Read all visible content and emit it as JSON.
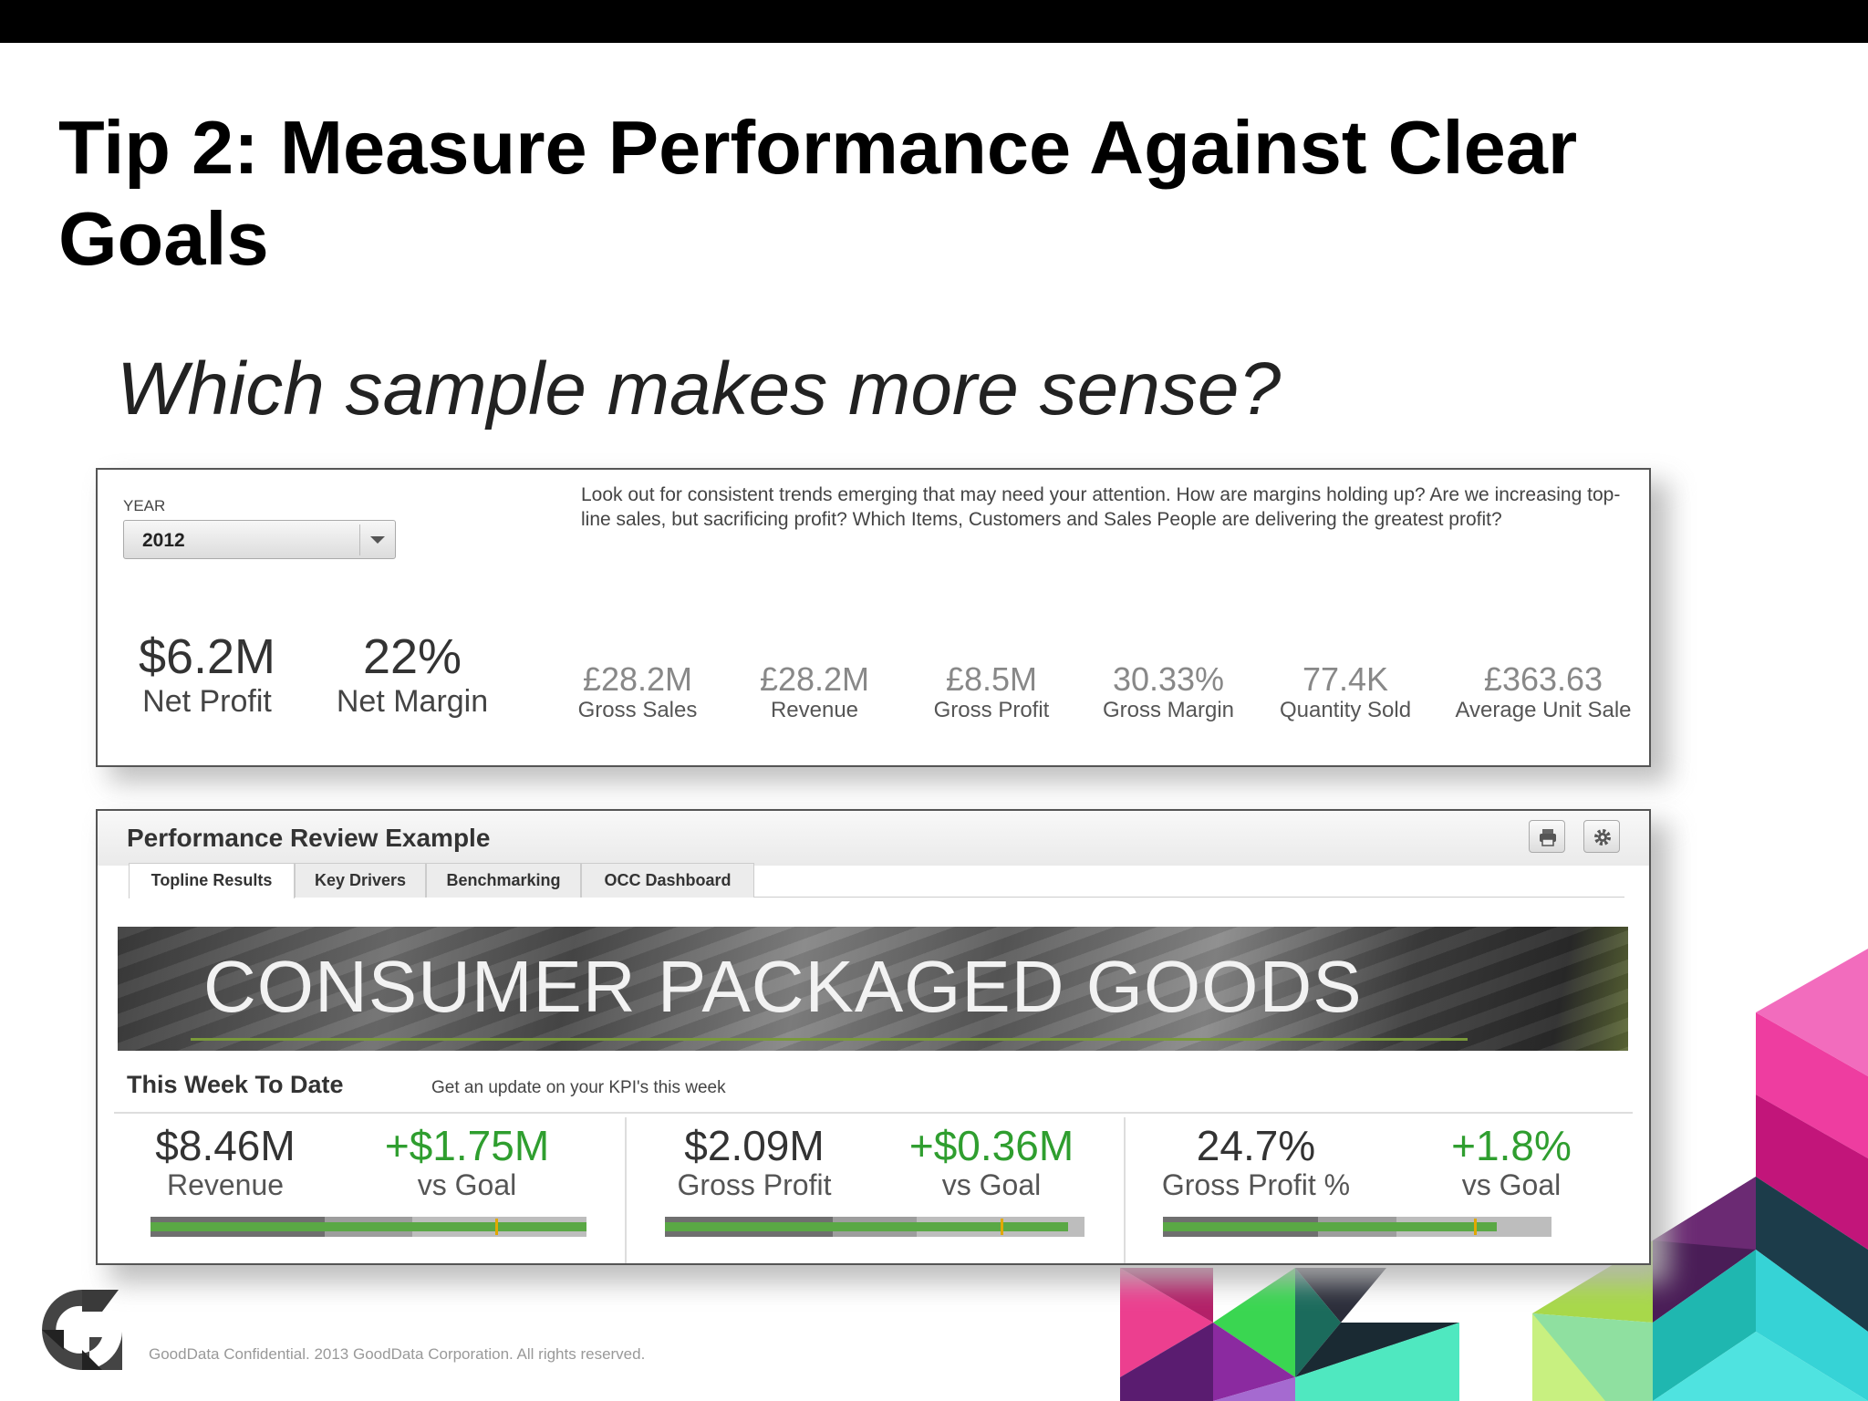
{
  "slide": {
    "title": "Tip 2: Measure Performance Against Clear Goals",
    "subtitle": "Which sample makes more sense?",
    "footer": "GoodData Confidential. 2013 GoodData Corporation. All rights reserved.",
    "logo_icon": "gooddata-g-logo-icon"
  },
  "sample1": {
    "year_label": "YEAR",
    "year_value": "2012",
    "description": "Look out for consistent trends emerging that may need your attention. How are margins holding up? Are we increasing top-line sales, but sacrificing profit? Which Items, Customers and Sales People are delivering the greatest profit?",
    "big_kpis": [
      {
        "value": "$6.2M",
        "label": "Net Profit"
      },
      {
        "value": "22%",
        "label": "Net Margin"
      }
    ],
    "small_kpis": [
      {
        "value": "£28.2M",
        "label": "Gross Sales"
      },
      {
        "value": "£28.2M",
        "label": "Revenue"
      },
      {
        "value": "£8.5M",
        "label": "Gross Profit"
      },
      {
        "value": "30.33%",
        "label": "Gross Margin"
      },
      {
        "value": "77.4K",
        "label": "Quantity Sold"
      },
      {
        "value": "£363.63",
        "label": "Average Unit Sale"
      }
    ]
  },
  "sample2": {
    "title": "Performance Review Example",
    "tabs": [
      "Topline Results",
      "Key Drivers",
      "Benchmarking",
      "OCC Dashboard"
    ],
    "active_tab": "Topline Results",
    "banner": "CONSUMER PACKAGED GOODS",
    "section_title": "This Week To Date",
    "section_subtitle": "Get an update on your KPI's this week",
    "metrics": [
      {
        "value": "$8.46M",
        "label": "Revenue",
        "delta": "+$1.75M",
        "delta_label": "vs Goal",
        "fill": 0.4,
        "mid": 0.6,
        "green": 1.0,
        "goal": 0.79
      },
      {
        "value": "$2.09M",
        "label": "Gross Profit",
        "delta": "+$0.36M",
        "delta_label": "vs Goal",
        "fill": 0.4,
        "mid": 0.6,
        "green": 0.96,
        "goal": 0.8
      },
      {
        "value": "24.7%",
        "label": "Gross Profit %",
        "delta": "+1.8%",
        "delta_label": "vs Goal",
        "fill": 0.4,
        "mid": 0.6,
        "green": 0.86,
        "goal": 0.8
      }
    ],
    "icons": {
      "print": "print-icon",
      "settings": "gear-icon"
    },
    "colors": {
      "positive": "#2f9e2f",
      "bar_green": "#5aa845",
      "goal_marker": "#e1a800"
    }
  }
}
